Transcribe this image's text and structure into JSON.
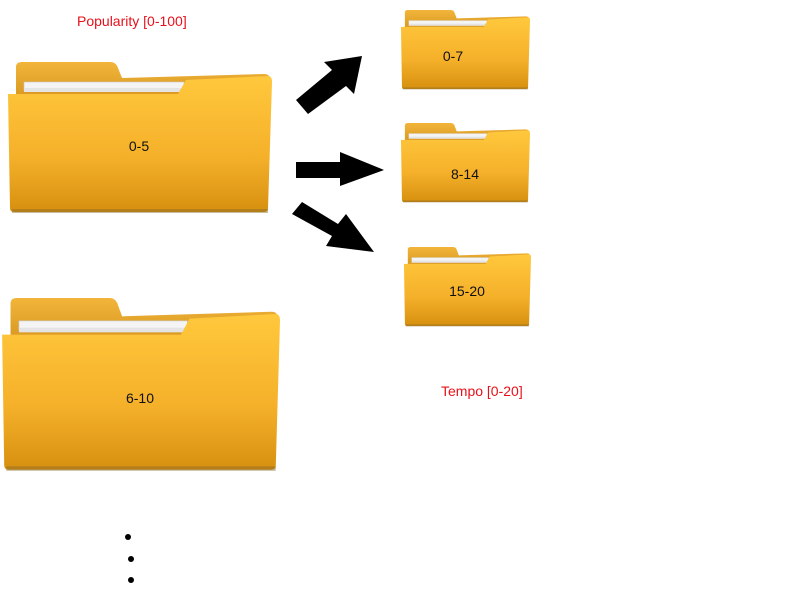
{
  "titles": {
    "popularity": "Popularity [0-100]",
    "tempo": "Tempo [0-20]"
  },
  "folders": {
    "big": [
      {
        "label": "0-5"
      },
      {
        "label": "6-10"
      }
    ],
    "small": [
      {
        "label": "0-7"
      },
      {
        "label": "8-14"
      },
      {
        "label": "15-20"
      }
    ]
  },
  "icons": {
    "folder": "folder-icon",
    "arrow": "arrow-icon",
    "continuation": "ellipsis-dots"
  },
  "colors": {
    "folder_light": "#ffc63a",
    "folder_dark": "#d98f0f",
    "title_red": "#e8101a",
    "arrow": "#000000"
  }
}
